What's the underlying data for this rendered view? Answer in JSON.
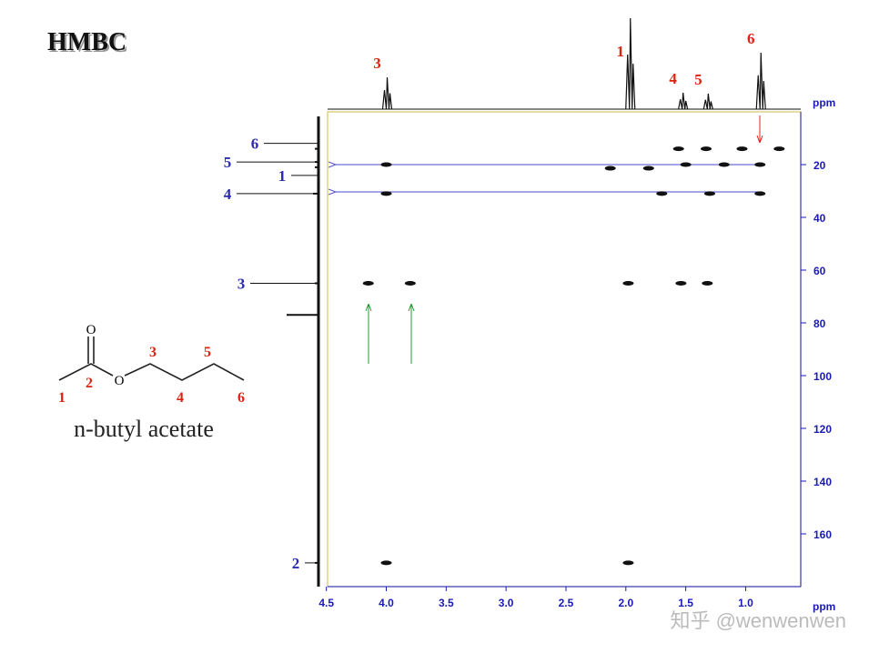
{
  "title": "HMBC",
  "compound": "n-butyl acetate",
  "watermark": "知乎 @wenwenwen",
  "structure": {
    "atom_labels": [
      "1",
      "2",
      "3",
      "4",
      "5",
      "6"
    ],
    "oxygens": [
      "O",
      "O"
    ]
  },
  "x_axis": {
    "unit": "ppm",
    "lim": [
      4.49,
      0.54
    ],
    "ticks": [
      {
        "value": 4.5,
        "label": "4.5"
      },
      {
        "value": 4.0,
        "label": "4.0"
      },
      {
        "value": 3.5,
        "label": "3.5"
      },
      {
        "value": 3.0,
        "label": "3.0"
      },
      {
        "value": 2.5,
        "label": "2.5"
      },
      {
        "value": 2.0,
        "label": "2.0"
      },
      {
        "value": 1.5,
        "label": "1.5"
      },
      {
        "value": 1.0,
        "label": "1.0"
      }
    ]
  },
  "y_axis": {
    "unit": "ppm",
    "lim": [
      0,
      180
    ],
    "ticks": [
      20,
      40,
      60,
      80,
      100,
      120,
      140,
      160
    ]
  },
  "proton_peaks": [
    {
      "label": "3",
      "shift": 4.0,
      "intensity": 35
    },
    {
      "label": "1",
      "shift": 1.97,
      "intensity": 100
    },
    {
      "label": "4",
      "shift": 1.53,
      "intensity": 18
    },
    {
      "label": "5",
      "shift": 1.32,
      "intensity": 17
    },
    {
      "label": "6",
      "shift": 0.88,
      "intensity": 62
    }
  ],
  "carbon_peaks": [
    {
      "label": "6",
      "shift": 14,
      "intensity": 4
    },
    {
      "label": "5",
      "shift": 19,
      "intensity": 4
    },
    {
      "label": "1",
      "shift": 21,
      "intensity": 4
    },
    {
      "label": "4",
      "shift": 31,
      "intensity": 6
    },
    {
      "label": "3",
      "shift": 65,
      "intensity": 4
    },
    {
      "label": null,
      "shift": 77,
      "intensity": 35
    },
    {
      "label": "2",
      "shift": 171,
      "intensity": 4
    }
  ],
  "cross_peaks": [
    [
      1.56,
      14
    ],
    [
      1.33,
      14
    ],
    [
      1.03,
      14
    ],
    [
      0.72,
      14
    ],
    [
      4.0,
      20
    ],
    [
      1.5,
      20
    ],
    [
      1.18,
      20
    ],
    [
      0.88,
      20
    ],
    [
      2.13,
      21.4
    ],
    [
      1.81,
      21.4
    ],
    [
      4.0,
      31
    ],
    [
      1.7,
      31
    ],
    [
      1.3,
      31
    ],
    [
      0.88,
      31
    ],
    [
      4.15,
      65
    ],
    [
      3.8,
      65
    ],
    [
      1.98,
      65
    ],
    [
      1.54,
      65
    ],
    [
      1.32,
      65
    ],
    [
      4.0,
      171
    ],
    [
      1.98,
      171
    ]
  ]
}
